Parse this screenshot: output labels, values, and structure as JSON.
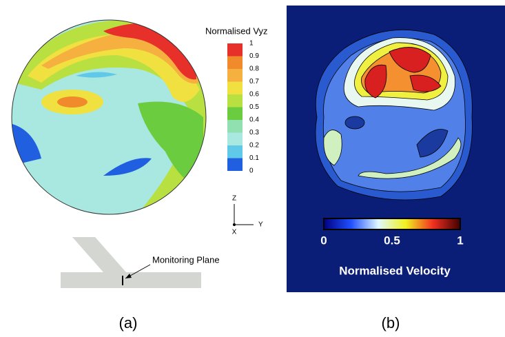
{
  "panel_a": {
    "colorbar": {
      "title": "Normalised Vyz",
      "ticks": [
        1,
        0.9,
        0.8,
        0.7,
        0.6,
        0.5,
        0.4,
        0.3,
        0.2,
        0.1,
        0
      ]
    },
    "axes": {
      "z": "Z",
      "y": "Y",
      "x": "X"
    },
    "annotation": "Monitoring Plane",
    "label": "(a)"
  },
  "panel_b": {
    "colorbar": {
      "ticks": [
        0,
        0.5,
        1
      ],
      "title": "Normalised Velocity"
    },
    "label": "(b)"
  }
}
